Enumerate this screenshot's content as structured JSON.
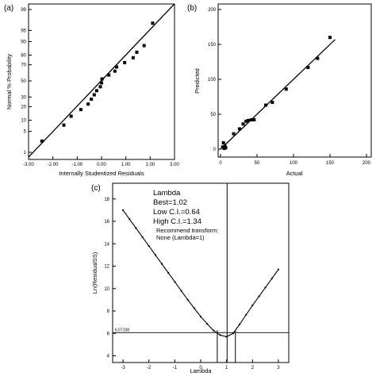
{
  "chart_data": [
    {
      "panel": "(a)",
      "type": "scatter",
      "xlabel": "Internally Studentized Residuals",
      "ylabel": "Normal % Probability",
      "xlim": [
        -3.0,
        3.0
      ],
      "x_ticks": [
        "-3.00",
        "-2.00",
        "-1.00",
        "0.00",
        "1.00",
        "2.00",
        "3.00"
      ],
      "y_ticks": [
        {
          "label": "99",
          "p": 99
        },
        {
          "label": "95",
          "p": 95
        },
        {
          "label": "90",
          "p": 90
        },
        {
          "label": "80",
          "p": 80
        },
        {
          "label": "70",
          "p": 70
        },
        {
          "label": "50",
          "p": 50
        },
        {
          "label": "30",
          "p": 30
        },
        {
          "label": "20",
          "p": 20
        },
        {
          "label": "10",
          "p": 10
        },
        {
          "label": "5",
          "p": 5
        },
        {
          "label": "1",
          "p": 1
        }
      ],
      "y_scale": "normal-probability",
      "fit_line": {
        "x": [
          -3.0,
          3.0
        ],
        "p": [
          0.65,
          99.4
        ]
      },
      "points": [
        {
          "x": -2.45,
          "p": 2.5
        },
        {
          "x": -1.55,
          "p": 7.5
        },
        {
          "x": -1.25,
          "p": 12.5
        },
        {
          "x": -0.85,
          "p": 17.5
        },
        {
          "x": -0.55,
          "p": 22.5
        },
        {
          "x": -0.42,
          "p": 27.5
        },
        {
          "x": -0.3,
          "p": 32.5
        },
        {
          "x": -0.2,
          "p": 37.5
        },
        {
          "x": -0.05,
          "p": 42.5
        },
        {
          "x": 0.0,
          "p": 47.5
        },
        {
          "x": 0.02,
          "p": 52.5
        },
        {
          "x": 0.3,
          "p": 57.5
        },
        {
          "x": 0.55,
          "p": 62.5
        },
        {
          "x": 0.62,
          "p": 67.5
        },
        {
          "x": 0.95,
          "p": 72.5
        },
        {
          "x": 1.3,
          "p": 77.5
        },
        {
          "x": 1.45,
          "p": 82.5
        },
        {
          "x": 1.75,
          "p": 87.5
        },
        {
          "x": 2.1,
          "p": 97.0
        }
      ]
    },
    {
      "panel": "(b)",
      "type": "scatter",
      "xlabel": "Actual",
      "ylabel": "Predicted",
      "xlim": [
        0,
        200
      ],
      "ylim": [
        0,
        210
      ],
      "x_ticks": [
        "0",
        "50",
        "100",
        "150",
        "200"
      ],
      "y_ticks": [
        "0",
        "50",
        "100",
        "150",
        "200"
      ],
      "fit_line": {
        "x": [
          0,
          157
        ],
        "y": [
          0,
          157
        ]
      },
      "points": [
        {
          "x": 3,
          "y": 3
        },
        {
          "x": 4,
          "y": 9
        },
        {
          "x": 5,
          "y": 1
        },
        {
          "x": 6,
          "y": 4
        },
        {
          "x": 7,
          "y": 2
        },
        {
          "x": 18,
          "y": 22
        },
        {
          "x": 26,
          "y": 29
        },
        {
          "x": 31,
          "y": 36
        },
        {
          "x": 35,
          "y": 40
        },
        {
          "x": 38,
          "y": 41
        },
        {
          "x": 42,
          "y": 42
        },
        {
          "x": 46,
          "y": 42
        },
        {
          "x": 62,
          "y": 63
        },
        {
          "x": 71,
          "y": 67
        },
        {
          "x": 90,
          "y": 86
        },
        {
          "x": 120,
          "y": 117
        },
        {
          "x": 133,
          "y": 130
        },
        {
          "x": 150,
          "y": 160
        }
      ]
    },
    {
      "panel": "(c)",
      "type": "line",
      "xlabel": "Lambda",
      "ylabel": "Ln(ResidualSS)",
      "xlim": [
        -3.4,
        3.4
      ],
      "ylim": [
        3.4,
        19.4
      ],
      "x_ticks": [
        "-3",
        "-2",
        "-1",
        "0",
        "1",
        "2",
        "3"
      ],
      "y_ticks": [
        "4",
        "6",
        "8",
        "10",
        "12",
        "14",
        "16",
        "18"
      ],
      "curve": {
        "x": [
          -3.0,
          -2.75,
          -2.5,
          -2.25,
          -2.0,
          -1.75,
          -1.5,
          -1.25,
          -1.0,
          -0.75,
          -0.5,
          -0.25,
          0.0,
          0.25,
          0.5,
          0.75,
          1.0,
          1.25,
          1.5,
          1.75,
          2.0,
          2.25,
          2.5,
          2.75,
          3.0
        ],
        "y": [
          17.0,
          16.2,
          15.4,
          14.6,
          13.8,
          13.0,
          12.2,
          11.4,
          10.6,
          9.8,
          9.0,
          8.25,
          7.5,
          6.85,
          6.25,
          5.85,
          5.7,
          6.0,
          6.8,
          7.65,
          8.5,
          9.3,
          10.1,
          10.9,
          11.7
        ]
      },
      "reference_line": {
        "y": 6.07108,
        "label": "6.07108"
      },
      "vertical_lines": {
        "best": 1.02,
        "low_ci": 0.64,
        "high_ci": 1.34
      },
      "annotations": {
        "title": "Lambda",
        "best": "Best=1.02",
        "low": "Low C.I.=0.64",
        "high": "High C.I.=1.34",
        "recommend": "Recommend transform:",
        "transform": "None (Lambda=1)"
      }
    }
  ]
}
